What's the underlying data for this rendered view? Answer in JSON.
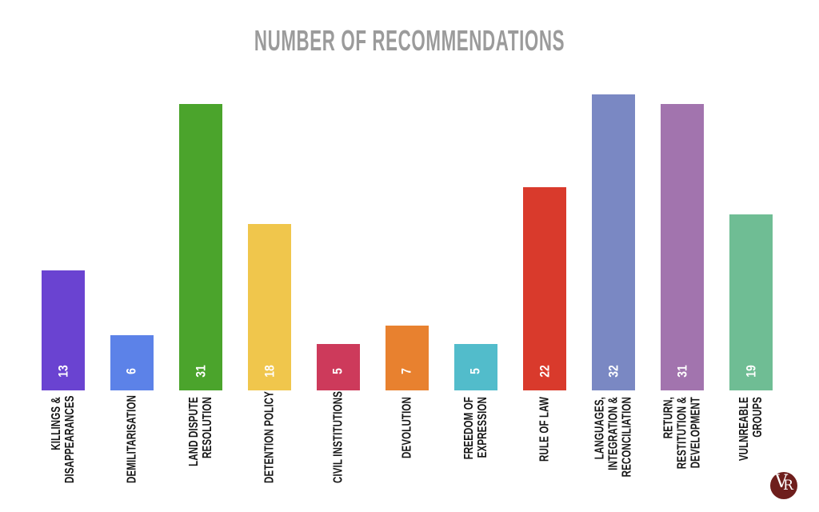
{
  "logo": {
    "v": "V",
    "r": "R",
    "bg": "#6e1e1c"
  },
  "chart_data": {
    "type": "bar",
    "title": "NUMBER OF RECOMMENDATIONS",
    "title_color": "#9b9b9b",
    "label_color": "#151515",
    "xlabel": "",
    "ylabel": "",
    "ylim": [
      0,
      32
    ],
    "grid": false,
    "legend": false,
    "value_label_position": "inside-bottom-rotated",
    "category_label_rotation": -90,
    "categories": [
      "KILLINGS &\nDISAPPEARANCES",
      "DEMILITARISATION",
      "LAND DISPUTE\nRESOLUTION",
      "DETENTION POLICY",
      "CIVIL INSTITUTIONS",
      "DEVOLUTION",
      "FREEDOM OF\nEXPRESSION",
      "RULE OF LAW",
      "LANGUAGES,\nINTEGRATION &\nRECONCILIATION",
      "RETURN,\nRESTITUTION &\nDEVELOPMENT",
      "VULNREABLE\nGROUPS"
    ],
    "values": [
      13,
      6,
      31,
      18,
      5,
      7,
      5,
      22,
      32,
      31,
      19
    ],
    "colors": [
      "#6a43d1",
      "#5c82e8",
      "#4ba42c",
      "#f0c64c",
      "#cd3a5b",
      "#e8812f",
      "#52bccb",
      "#d93a2c",
      "#7a88c3",
      "#a274ae",
      "#6fbd94"
    ]
  }
}
